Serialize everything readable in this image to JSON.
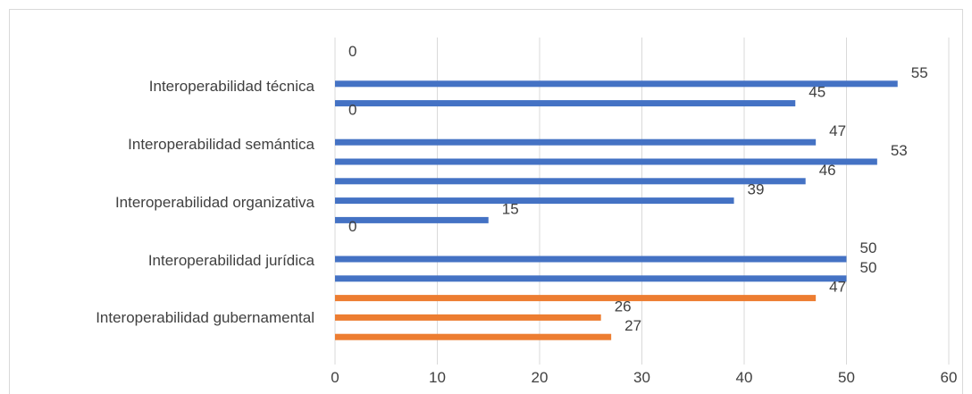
{
  "chart_data": {
    "type": "bar",
    "orientation": "horizontal",
    "grid": true,
    "xlim": [
      0,
      60
    ],
    "x_ticks": [
      "0",
      "10",
      "20",
      "30",
      "40",
      "50",
      "60"
    ],
    "x_tick_values": [
      0,
      10,
      20,
      30,
      40,
      50,
      60
    ],
    "categories": [
      {
        "label": "Interoperabilidad técnica",
        "bars": [
          {
            "value": 0,
            "label": "0",
            "color": "#4472C4"
          },
          {
            "value": 55,
            "label": "55",
            "color": "#4472C4"
          },
          {
            "value": 45,
            "label": "45",
            "color": "#4472C4"
          }
        ]
      },
      {
        "label": "Interoperabilidad semántica",
        "bars": [
          {
            "value": 0,
            "label": "0",
            "color": "#4472C4"
          },
          {
            "value": 47,
            "label": "47",
            "color": "#4472C4"
          },
          {
            "value": 53,
            "label": "53",
            "color": "#4472C4"
          }
        ]
      },
      {
        "label": "Interoperabilidad organizativa",
        "bars": [
          {
            "value": 46,
            "label": "46",
            "color": "#4472C4"
          },
          {
            "value": 39,
            "label": "39",
            "color": "#4472C4"
          },
          {
            "value": 15,
            "label": "15",
            "color": "#4472C4"
          }
        ]
      },
      {
        "label": "Interoperabilidad jurídica",
        "bars": [
          {
            "value": 0,
            "label": "0",
            "color": "#4472C4"
          },
          {
            "value": 50,
            "label": "50",
            "color": "#4472C4"
          },
          {
            "value": 50,
            "label": "50",
            "color": "#4472C4"
          }
        ]
      },
      {
        "label": "Interoperabilidad gubernamental",
        "bars": [
          {
            "value": 47,
            "label": "47",
            "color": "#ED7D31"
          },
          {
            "value": 26,
            "label": "26",
            "color": "#ED7D31"
          },
          {
            "value": 27,
            "label": "27",
            "color": "#ED7D31"
          }
        ]
      }
    ],
    "colors": {
      "blue": "#4472C4",
      "orange": "#ED7D31",
      "grid": "#d9d9d9",
      "text": "#404040"
    }
  }
}
